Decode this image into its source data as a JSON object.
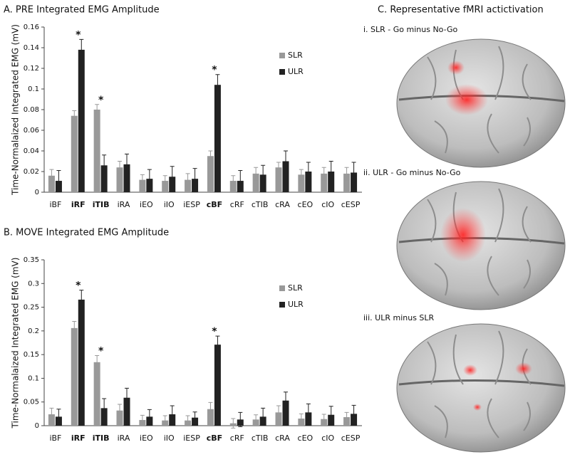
{
  "chart_data": [
    {
      "type": "bar",
      "title": "A. PRE Integrated EMG Amplitude",
      "y_label": "Time-Normalaized Integrated EMG (mV)",
      "categories": [
        "iBF",
        "iRF",
        "iTIB",
        "iRA",
        "iEO",
        "iIO",
        "iESP",
        "cBF",
        "cRF",
        "cTIB",
        "cRA",
        "cEO",
        "cIO",
        "cESP"
      ],
      "series": [
        {
          "name": "SLR",
          "color": "#999999",
          "values": [
            0.016,
            0.074,
            0.08,
            0.024,
            0.012,
            0.011,
            0.012,
            0.035,
            0.011,
            0.018,
            0.024,
            0.017,
            0.018,
            0.018
          ],
          "errors": [
            0.006,
            0.005,
            0.005,
            0.006,
            0.005,
            0.005,
            0.006,
            0.005,
            0.005,
            0.006,
            0.005,
            0.005,
            0.006,
            0.006
          ]
        },
        {
          "name": "ULR",
          "color": "#222222",
          "values": [
            0.011,
            0.138,
            0.026,
            0.027,
            0.013,
            0.015,
            0.013,
            0.104,
            0.011,
            0.017,
            0.03,
            0.02,
            0.02,
            0.019
          ],
          "errors": [
            0.01,
            0.01,
            0.01,
            0.01,
            0.009,
            0.01,
            0.01,
            0.01,
            0.01,
            0.009,
            0.01,
            0.009,
            0.01,
            0.01
          ]
        }
      ],
      "markers": [
        null,
        "*",
        "*",
        null,
        null,
        null,
        null,
        "*",
        null,
        null,
        null,
        null,
        null,
        null
      ],
      "ylim": [
        0,
        0.16
      ],
      "yticks": [
        0,
        0.02,
        0.04,
        0.06,
        0.08,
        0.1,
        0.12,
        0.14,
        0.16
      ],
      "legend": "right"
    },
    {
      "type": "bar",
      "title": "B. MOVE Integrated EMG Amplitude",
      "y_label": "Time-Normalaized Integrated EMG (mV)",
      "categories": [
        "iBF",
        "iRF",
        "iTIB",
        "iRA",
        "iEO",
        "iIO",
        "iESP",
        "cBF",
        "cRF",
        "cTIB",
        "cRA",
        "cEO",
        "cIO",
        "cESP"
      ],
      "series": [
        {
          "name": "SLR",
          "color": "#999999",
          "values": [
            0.024,
            0.206,
            0.134,
            0.032,
            0.012,
            0.011,
            0.011,
            0.035,
            0.005,
            0.013,
            0.028,
            0.015,
            0.014,
            0.018
          ],
          "errors": [
            0.013,
            0.014,
            0.014,
            0.013,
            0.01,
            0.01,
            0.01,
            0.014,
            0.01,
            0.01,
            0.014,
            0.01,
            0.01,
            0.01
          ]
        },
        {
          "name": "ULR",
          "color": "#222222",
          "values": [
            0.019,
            0.266,
            0.037,
            0.059,
            0.019,
            0.024,
            0.017,
            0.171,
            0.013,
            0.019,
            0.053,
            0.028,
            0.023,
            0.025
          ],
          "errors": [
            0.016,
            0.02,
            0.02,
            0.02,
            0.015,
            0.018,
            0.012,
            0.018,
            0.015,
            0.018,
            0.018,
            0.018,
            0.018,
            0.018
          ]
        }
      ],
      "markers": [
        null,
        "*",
        "*",
        null,
        null,
        null,
        null,
        "*",
        null,
        null,
        null,
        null,
        null,
        null
      ],
      "ylim": [
        0,
        0.35
      ],
      "yticks": [
        0,
        0.05,
        0.1,
        0.15,
        0.2,
        0.25,
        0.3,
        0.35
      ],
      "legend": "right"
    }
  ],
  "panel_c": {
    "title": "C. Representative fMRI actictivation",
    "labels": [
      "i. SLR - Go minus No-Go",
      "ii. ULR - Go minus No-Go",
      "iii. ULR minus SLR"
    ]
  }
}
